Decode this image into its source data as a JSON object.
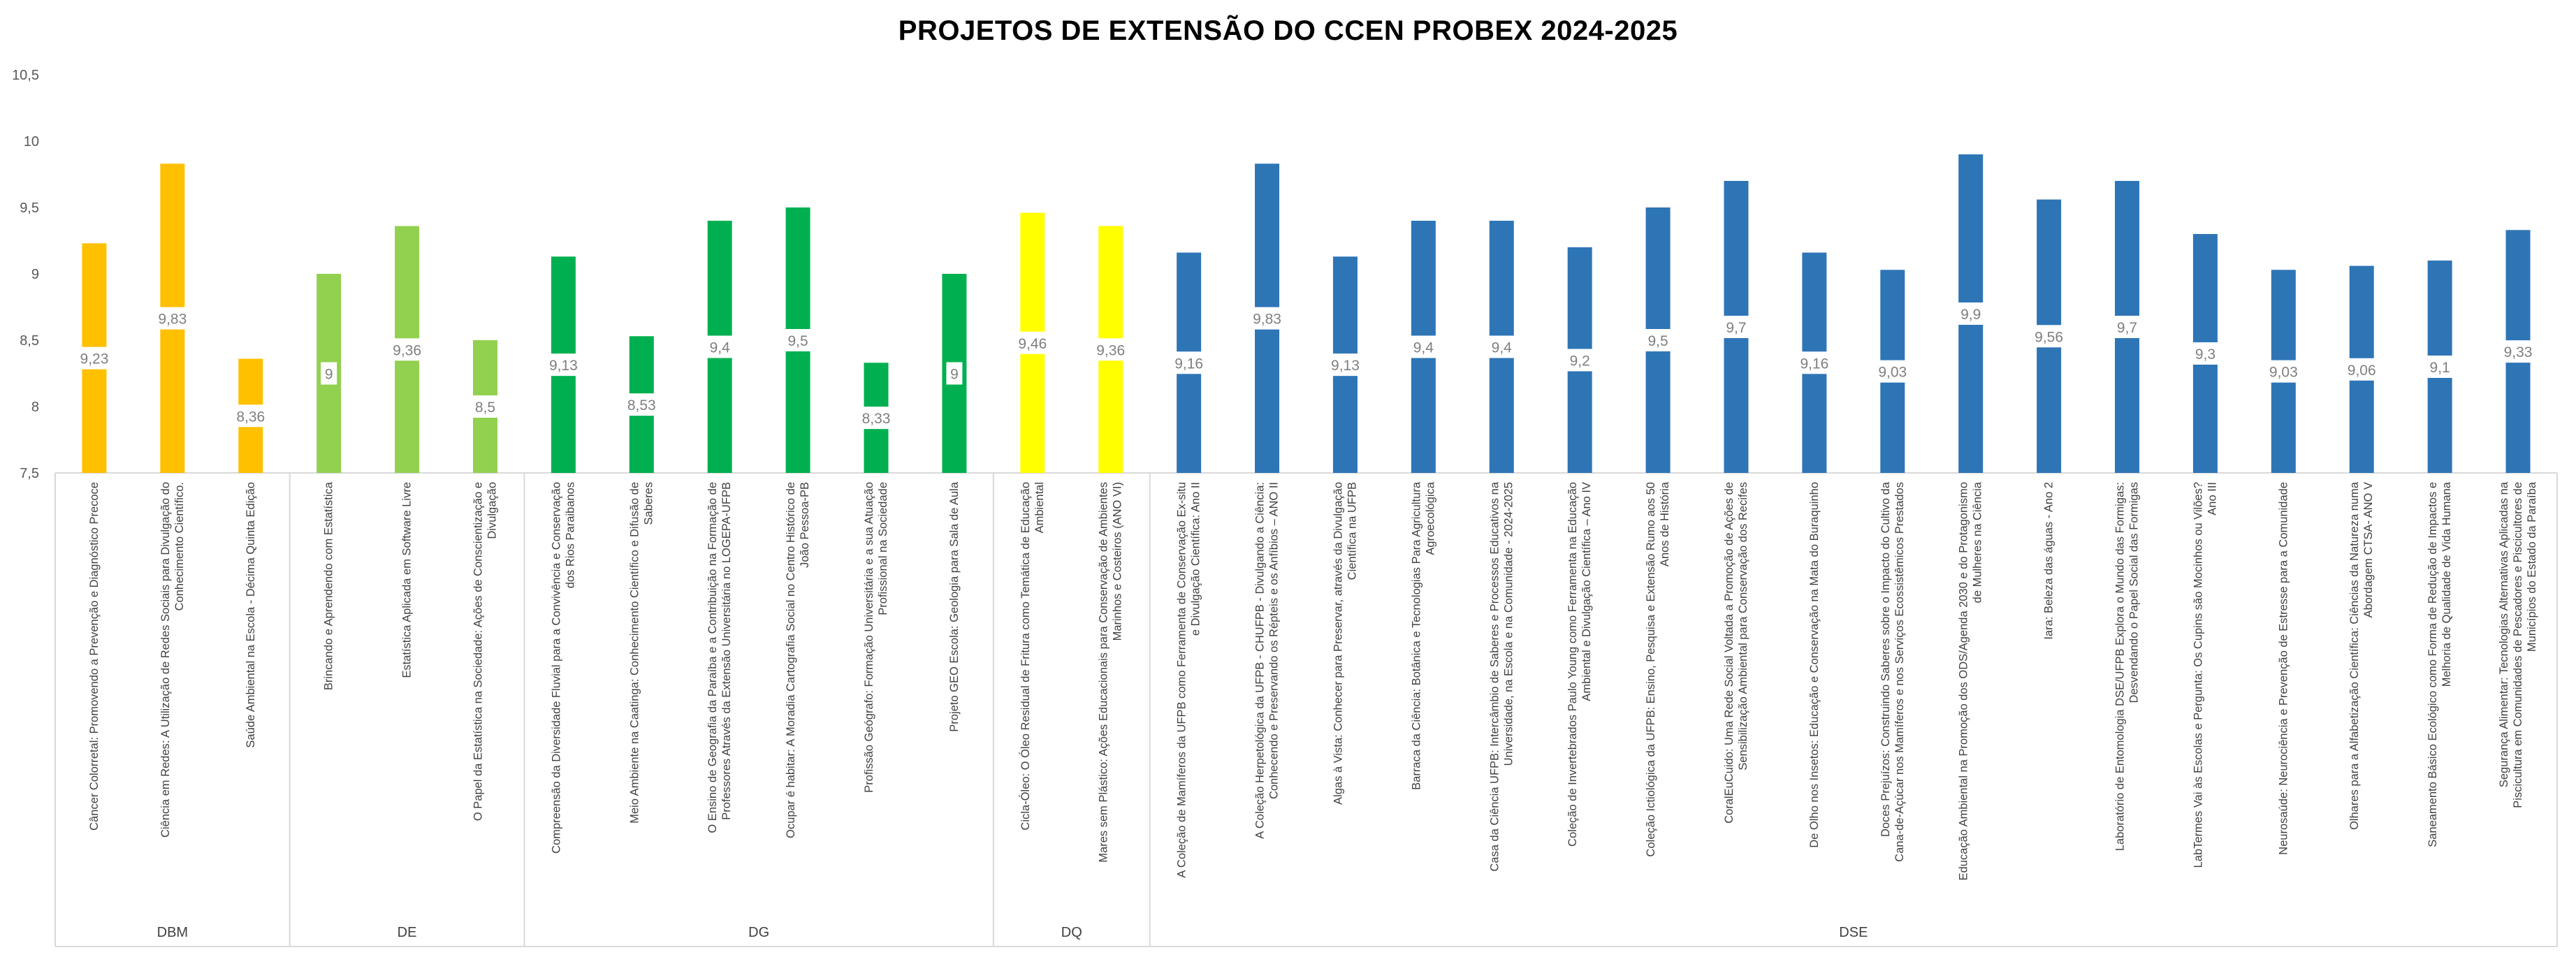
{
  "chart_data": {
    "type": "bar",
    "title": "PROJETOS DE EXTENSÃO DO CCEN PROBEX 2024-2025",
    "xlabel": "",
    "ylabel": "",
    "ylim": [
      7.5,
      10.5
    ],
    "yticks": [
      "7,5",
      "8",
      "8,5",
      "9",
      "9,5",
      "10",
      "10,5"
    ],
    "grid": false,
    "legend": "none",
    "groups": [
      {
        "name": "DBM",
        "color": "#FFC000",
        "items": [
          {
            "label": "Câncer Colorretal: Promovendo a Prevenção e Diagnóstico Precoce",
            "value": 9.23,
            "data_label": "9,23"
          },
          {
            "label": "Ciência em Redes: A Utilização de Redes Sociais para Divulgação do Conhecimento Científico.",
            "value": 9.83,
            "data_label": "9,83"
          },
          {
            "label": "Saúde Ambiental na Escola - Décima Quinta Edição",
            "value": 8.36,
            "data_label": "8,36"
          }
        ]
      },
      {
        "name": "DE",
        "color": "#92D050",
        "items": [
          {
            "label": "Brincando e Aprendendo com Estatística",
            "value": 9,
            "data_label": "9"
          },
          {
            "label": "Estatística Aplicada em Software Livre",
            "value": 9.36,
            "data_label": "9,36"
          },
          {
            "label": "O Papel da Estatística na Sociedade: Ações de Conscientização e Divulgação",
            "value": 8.5,
            "data_label": "8,5"
          }
        ]
      },
      {
        "name": "DG",
        "color": "#00B050",
        "items": [
          {
            "label": "Compreensão da Diversidade Fluvial para a Convivência e Conservação dos Rios Paraibanos",
            "value": 9.13,
            "data_label": "9,13"
          },
          {
            "label": "Meio Ambiente na Caatinga: Conhecimento Científico e Difusão de Saberes",
            "value": 8.53,
            "data_label": "8,53"
          },
          {
            "label": "O Ensino de Geografia da Paraíba e a Contribuição na Formação de Professores Através da Extensão Universitária no LOGEPA-UFPB",
            "value": 9.4,
            "data_label": "9,4"
          },
          {
            "label": "Ocupar é habitar: A Moradia Cartografia Social no Centro Histórico de João Pessoa-PB",
            "value": 9.5,
            "data_label": "9,5"
          },
          {
            "label": "Profissão Geógrafo: Formação Universitária e a sua Atuação Profissional na Sociedade",
            "value": 8.33,
            "data_label": "8,33"
          },
          {
            "label": "Projeto GEO Escola: Geologia para Sala de Aula",
            "value": 9,
            "data_label": "9"
          }
        ]
      },
      {
        "name": "DQ",
        "color": "#FFFF00",
        "items": [
          {
            "label": "Cicla-Óleo: O Óleo Residual de Fritura como Temática de Educação Ambiental",
            "value": 9.46,
            "data_label": "9,46"
          },
          {
            "label": "Mares sem Plástico: Ações Educacionais para Conservação de Ambientes Marinhos e Costeiros (ANO VI)",
            "value": 9.36,
            "data_label": "9,36"
          }
        ]
      },
      {
        "name": "DSE",
        "color": "#2E75B6",
        "items": [
          {
            "label": "A Coleção de Mamíferos da UFPB como Ferramenta de Conservação Ex-situ e Divulgação Científica: Ano II",
            "value": 9.16,
            "data_label": "9,16"
          },
          {
            "label": "A Coleção Herpetológica da UFPB - CHUFPB - Divulgando a Ciência: Conhecendo e Preservando os Répteis e os Anfíbios – ANO II",
            "value": 9.83,
            "data_label": "9,83"
          },
          {
            "label": "Algas à Vista: Conhecer para Preservar, através da Divulgação Científica na UFPB",
            "value": 9.13,
            "data_label": "9,13"
          },
          {
            "label": "Barraca da Ciência: Botânica e Tecnologias Para Agricultura Agroecológica",
            "value": 9.4,
            "data_label": "9,4"
          },
          {
            "label": "Casa da Ciência UFPB: Intercâmbio de Saberes e Processos Educativos na Universidade, na Escola e na Comunidade - 2024-2025",
            "value": 9.4,
            "data_label": "9,4"
          },
          {
            "label": "Coleção de Invertebrados Paulo Young como Ferramenta na Educação Ambiental e Divulgação Científica – Ano IV",
            "value": 9.2,
            "data_label": "9,2"
          },
          {
            "label": "Coleção Ictiológica da UFPB: Ensino, Pesquisa e Extensão Rumo aos 50 Anos de História",
            "value": 9.5,
            "data_label": "9,5"
          },
          {
            "label": "CoralEuCuido: Uma Rede Social Voltada a Promoção de Ações de Sensibilização Ambiental para Conservação dos Recifes",
            "value": 9.7,
            "data_label": "9,7"
          },
          {
            "label": "De Olho nos Insetos: Educação e Conservação na Mata do Buraquinho",
            "value": 9.16,
            "data_label": "9,16"
          },
          {
            "label": "Doces Prejuízos: Construindo Saberes sobre o Impacto do Cultivo da Cana-de-Açúcar nos Mamíferos e nos Serviços Ecossistêmicos Prestados",
            "value": 9.03,
            "data_label": "9,03"
          },
          {
            "label": "Educação Ambiental na Promoção dos ODS/Agenda 2030 e do Protagonismo de Mulheres na Ciência",
            "value": 9.9,
            "data_label": "9,9"
          },
          {
            "label": "Iara: Beleza das águas - Ano 2",
            "value": 9.56,
            "data_label": "9,56"
          },
          {
            "label": "Laboratório de Entomologia DSE/UFPB Explora o Mundo das Formigas: Desvendando o Papel Social das Formigas",
            "value": 9.7,
            "data_label": "9,7"
          },
          {
            "label": "LabTermes Vai às Escolas e Pergunta: Os Cupins são Mocinhos ou Vilões? Ano III",
            "value": 9.3,
            "data_label": "9,3"
          },
          {
            "label": "Neurosaúde: Neurociência e Prevenção de Estresse para a Comunidade",
            "value": 9.03,
            "data_label": "9,03"
          },
          {
            "label": "Olhares para a Alfabetização Científica: Ciências da Natureza numa Abordagem CTSA- ANO V",
            "value": 9.06,
            "data_label": "9,06"
          },
          {
            "label": "Saneamento Básico Ecológico como Forma de Redução de Impactos e Melhoria de Qualidade de Vida Humana",
            "value": 9.1,
            "data_label": "9,1"
          },
          {
            "label": "Segurança Alimentar: Tecnologias Alternativas Aplicadas na Piscicultura em Comunidades de Pescadores e Piscicultores de Municípios do Estado da Paraíba",
            "value": 9.33,
            "data_label": "9,33"
          }
        ]
      }
    ]
  }
}
